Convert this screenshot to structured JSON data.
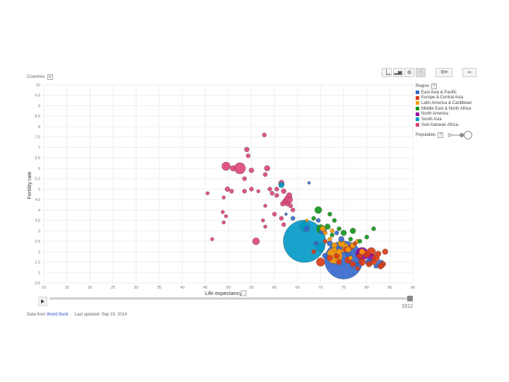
{
  "controls": {
    "countries_label": "Countries",
    "region_label": "Region",
    "population_label": "Population"
  },
  "footer": {
    "data_from": "Data from",
    "source": "World Bank",
    "updated": "Last updated: Sep 19, 2014"
  },
  "timeline": {
    "year": "2012",
    "progress": 1.0
  },
  "chart_data": {
    "type": "scatter",
    "xlabel": "Life expectancy",
    "ylabel": "Fertility rate",
    "xlim": [
      10,
      90
    ],
    "ylim": [
      0.5,
      10
    ],
    "x_ticks": [
      "10",
      "15",
      "20",
      "25",
      "30",
      "35",
      "40",
      "45",
      "50",
      "55",
      "60",
      "65",
      "70",
      "75",
      "80",
      "85",
      "90"
    ],
    "y_ticks": [
      "0.5",
      "1",
      "1.5",
      "2",
      "2.5",
      "3",
      "3.5",
      "4",
      "4.5",
      "5",
      "5.5",
      "6",
      "6.5",
      "7",
      "7.5",
      "8",
      "8.5",
      "9",
      "9.5",
      "10"
    ],
    "grid": true,
    "legend_position": "right",
    "regions": [
      {
        "name": "East Asia & Pacific",
        "color": "#3366cc"
      },
      {
        "name": "Europe & Central Asia",
        "color": "#dc3912"
      },
      {
        "name": "Latin America & Caribbean",
        "color": "#ff9900"
      },
      {
        "name": "Middle East & North Africa",
        "color": "#109618"
      },
      {
        "name": "North America",
        "color": "#990099"
      },
      {
        "name": "South Asia",
        "color": "#0099c6"
      },
      {
        "name": "Sub-Saharan Africa",
        "color": "#dd4477"
      }
    ],
    "series": [
      {
        "name": "Sub-Saharan Africa",
        "color": "#dd4477",
        "points": [
          [
            57.8,
            7.6,
            3
          ],
          [
            54,
            6.9,
            3.5
          ],
          [
            54.3,
            6.6,
            3
          ],
          [
            49.5,
            6.1,
            6
          ],
          [
            52.5,
            6,
            8
          ],
          [
            51,
            6,
            4
          ],
          [
            53.5,
            5.5,
            3
          ],
          [
            55,
            5.9,
            3.5
          ],
          [
            58,
            5.7,
            3
          ],
          [
            58.4,
            6,
            4
          ],
          [
            45.5,
            4.8,
            2.5
          ],
          [
            49,
            4.6,
            2.5
          ],
          [
            49.8,
            5,
            3.5
          ],
          [
            50.7,
            4.9,
            3
          ],
          [
            53.5,
            4.9,
            3
          ],
          [
            55,
            5,
            3
          ],
          [
            56.5,
            4.9,
            2.5
          ],
          [
            59,
            5,
            3
          ],
          [
            59.5,
            4.8,
            3
          ],
          [
            60.5,
            4.7,
            3
          ],
          [
            61.5,
            5.3,
            4
          ],
          [
            62,
            4.9,
            3.5
          ],
          [
            62.3,
            4.4,
            4
          ],
          [
            63,
            4.5,
            6
          ],
          [
            63.2,
            4.7,
            4
          ],
          [
            62.8,
            4.3,
            3.5
          ],
          [
            61.8,
            4.3,
            3.5
          ],
          [
            60,
            3.8,
            3
          ],
          [
            48.8,
            3.9,
            2.5
          ],
          [
            49.5,
            3.7,
            2.5
          ],
          [
            49,
            3.4,
            2.5
          ],
          [
            46.5,
            2.6,
            2.5
          ],
          [
            56,
            2.5,
            5
          ],
          [
            63.5,
            4.2,
            3
          ],
          [
            64,
            4,
            3
          ],
          [
            62,
            3.3,
            3
          ],
          [
            61.5,
            3.6,
            3
          ],
          [
            57.5,
            3.5,
            2.5
          ],
          [
            58,
            3.2,
            2.5
          ],
          [
            60.5,
            5,
            3
          ],
          [
            58,
            4.2,
            2.5
          ]
        ]
      },
      {
        "name": "South Asia",
        "color": "#0099c6",
        "points": [
          [
            66.5,
            2.5,
            30
          ],
          [
            61.5,
            5.2,
            4
          ],
          [
            66.5,
            3.2,
            7
          ],
          [
            70,
            2.2,
            6
          ]
        ]
      },
      {
        "name": "East Asia & Pacific",
        "color": "#3366cc",
        "points": [
          [
            75,
            1.6,
            27
          ],
          [
            67.5,
            5.3,
            2
          ],
          [
            62.5,
            3.8,
            2
          ],
          [
            64,
            3.6,
            3
          ],
          [
            67,
            3.1,
            4
          ],
          [
            69.5,
            3.5,
            3
          ],
          [
            70.5,
            3,
            5
          ],
          [
            72,
            2.4,
            4
          ],
          [
            73.5,
            2.9,
            3
          ],
          [
            74,
            2.2,
            5
          ],
          [
            76,
            1.9,
            4
          ],
          [
            78,
            1.4,
            3
          ],
          [
            80.5,
            1.5,
            5
          ],
          [
            83,
            1.4,
            6
          ],
          [
            74.5,
            2.6,
            4
          ],
          [
            71,
            1.8,
            4
          ],
          [
            82,
            1.3,
            3
          ],
          [
            69,
            2.4,
            3
          ]
        ]
      },
      {
        "name": "Europe & Central Asia",
        "color": "#dc3912",
        "points": [
          [
            70,
            1.5,
            6
          ],
          [
            72,
            1.7,
            4
          ],
          [
            76,
            1.6,
            5
          ],
          [
            77,
            1.4,
            4
          ],
          [
            78.5,
            1.8,
            4
          ],
          [
            80,
            1.9,
            5
          ],
          [
            81,
            2,
            6
          ],
          [
            82,
            1.7,
            5
          ],
          [
            83.5,
            1.4,
            4
          ],
          [
            79,
            1.5,
            5
          ],
          [
            73.5,
            1.8,
            4
          ],
          [
            75.5,
            2.1,
            4
          ],
          [
            74,
            1.5,
            4
          ],
          [
            71,
            2.5,
            3
          ],
          [
            68.5,
            2,
            3
          ],
          [
            80.5,
            1.4,
            4
          ],
          [
            82.5,
            1.9,
            4
          ],
          [
            77.5,
            2.4,
            3
          ],
          [
            76.5,
            2.2,
            4
          ],
          [
            84,
            2,
            4
          ],
          [
            83,
            1.3,
            4
          ],
          [
            78,
            1.2,
            3
          ],
          [
            81.5,
            1.5,
            4
          ]
        ]
      },
      {
        "name": "Latin America & Caribbean",
        "color": "#ff9900",
        "points": [
          [
            73,
            1.8,
            11
          ],
          [
            74.5,
            2.4,
            5
          ],
          [
            75,
            2.2,
            7
          ],
          [
            73,
            2.3,
            4
          ],
          [
            76,
            2.1,
            4
          ],
          [
            77,
            2.3,
            4
          ],
          [
            74,
            2,
            4
          ],
          [
            72,
            2.6,
            3
          ],
          [
            71,
            2.9,
            3
          ],
          [
            79,
            2,
            4
          ],
          [
            72.5,
            3,
            3
          ],
          [
            70.5,
            3.1,
            4
          ],
          [
            67,
            3.5,
            2
          ],
          [
            73,
            2.1,
            3
          ],
          [
            78,
            2.5,
            3
          ],
          [
            76.5,
            1.7,
            3
          ]
        ]
      },
      {
        "name": "Middle East & North Africa",
        "color": "#109618",
        "points": [
          [
            69.5,
            4,
            5
          ],
          [
            72,
            3.8,
            3
          ],
          [
            71.5,
            3.2,
            4
          ],
          [
            70,
            3.1,
            6
          ],
          [
            74,
            3.1,
            3
          ],
          [
            75,
            2.9,
            4
          ],
          [
            76.5,
            2.6,
            3
          ],
          [
            77,
            3,
            4
          ],
          [
            78.5,
            2.5,
            3
          ],
          [
            80,
            2.7,
            3
          ],
          [
            73,
            3.5,
            3
          ],
          [
            81.5,
            3.1,
            3
          ],
          [
            72.5,
            2.8,
            3
          ],
          [
            68.5,
            3.6,
            3
          ]
        ]
      },
      {
        "name": "North America",
        "color": "#990099",
        "points": [
          [
            79,
            1.9,
            9
          ],
          [
            81,
            1.7,
            6
          ]
        ]
      }
    ]
  }
}
